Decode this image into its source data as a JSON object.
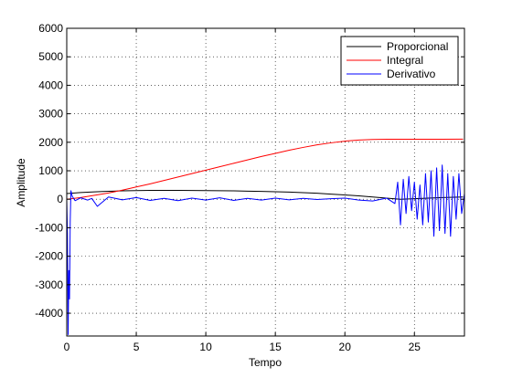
{
  "chart_data": {
    "type": "line",
    "title": "",
    "xlabel": "Tempo",
    "ylabel": "Amplitude",
    "xlim": [
      0,
      28.6
    ],
    "ylim": [
      -4800,
      6000
    ],
    "xticks": [
      0,
      5,
      10,
      15,
      20,
      25
    ],
    "xtick_labels": [
      "0",
      "5",
      "10",
      "15",
      "20",
      "25"
    ],
    "yticks": [
      -4000,
      -3000,
      -2000,
      -1000,
      0,
      1000,
      2000,
      3000,
      4000,
      5000,
      6000
    ],
    "ytick_labels": [
      "-4000",
      "-3000",
      "-2000",
      "-1000",
      "0",
      "1000",
      "2000",
      "3000",
      "4000",
      "5000",
      "6000"
    ],
    "grid": true,
    "grid_style": "dotted",
    "legend_position": "top-right",
    "series": [
      {
        "name": "Proporcional",
        "color": "#000000",
        "x": [
          0,
          1,
          2,
          3,
          4,
          5,
          6,
          7,
          8,
          9,
          10,
          11,
          12,
          13,
          14,
          15,
          16,
          17,
          18,
          19,
          20,
          21,
          22,
          23,
          24,
          25,
          26,
          27,
          28.5
        ],
        "y": [
          200,
          235,
          260,
          280,
          295,
          305,
          310,
          312,
          310,
          308,
          305,
          300,
          295,
          285,
          275,
          265,
          250,
          230,
          210,
          180,
          150,
          120,
          80,
          40,
          0,
          20,
          40,
          60,
          80
        ]
      },
      {
        "name": "Integral",
        "color": "#ff0000",
        "x": [
          0,
          1,
          2,
          3,
          4,
          5,
          6,
          7,
          8,
          9,
          10,
          11,
          12,
          13,
          14,
          15,
          16,
          17,
          18,
          19,
          20,
          21,
          22,
          23,
          24,
          25,
          26,
          27,
          28.5
        ],
        "y": [
          0,
          60,
          140,
          220,
          320,
          430,
          540,
          660,
          780,
          900,
          1020,
          1140,
          1260,
          1380,
          1500,
          1610,
          1720,
          1820,
          1910,
          1980,
          2040,
          2080,
          2100,
          2105,
          2105,
          2105,
          2105,
          2105,
          2110
        ]
      },
      {
        "name": "Derivativo",
        "color": "#0000ff",
        "x": [
          0,
          0.05,
          0.1,
          0.15,
          0.2,
          0.25,
          0.3,
          0.4,
          0.6,
          1,
          1.5,
          1.8,
          2.2,
          3,
          4,
          5,
          6,
          7,
          8,
          9,
          10,
          11,
          12,
          13,
          14,
          15,
          16,
          17,
          18,
          19,
          20,
          21,
          22,
          23,
          23.6,
          23.8,
          24,
          24.2,
          24.4,
          24.6,
          24.8,
          25,
          25.2,
          25.4,
          25.6,
          25.8,
          26,
          26.2,
          26.4,
          26.6,
          26.8,
          27,
          27.2,
          27.4,
          27.6,
          27.8,
          28,
          28.2,
          28.4,
          28.6
        ],
        "y": [
          0,
          -1200,
          -4750,
          -2500,
          -3500,
          -800,
          300,
          100,
          -50,
          50,
          -30,
          30,
          -250,
          80,
          -20,
          60,
          -40,
          30,
          -50,
          40,
          -30,
          50,
          -40,
          30,
          -30,
          40,
          -20,
          30,
          -10,
          20,
          40,
          -30,
          -60,
          40,
          -150,
          600,
          -900,
          700,
          -500,
          800,
          -400,
          600,
          -700,
          500,
          -900,
          900,
          -800,
          1000,
          -1300,
          1100,
          -1100,
          1200,
          -1200,
          900,
          -1300,
          800,
          -700,
          900,
          -500,
          200
        ]
      }
    ]
  }
}
